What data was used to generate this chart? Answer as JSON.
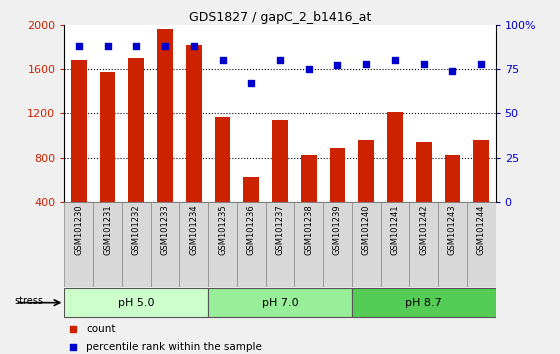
{
  "title": "GDS1827 / gapC_2_b1416_at",
  "categories": [
    "GSM101230",
    "GSM101231",
    "GSM101232",
    "GSM101233",
    "GSM101234",
    "GSM101235",
    "GSM101236",
    "GSM101237",
    "GSM101238",
    "GSM101239",
    "GSM101240",
    "GSM101241",
    "GSM101242",
    "GSM101243",
    "GSM101244"
  ],
  "counts": [
    1680,
    1570,
    1700,
    1960,
    1820,
    1170,
    620,
    1140,
    820,
    890,
    960,
    1210,
    940,
    820,
    960
  ],
  "percentile": [
    88,
    88,
    88,
    88,
    88,
    80,
    67,
    80,
    75,
    77,
    78,
    80,
    78,
    74,
    78
  ],
  "bar_color": "#cc2200",
  "dot_color": "#0000cc",
  "ylim_left": [
    400,
    2000
  ],
  "ylim_right": [
    0,
    100
  ],
  "yticks_left": [
    400,
    800,
    1200,
    1600,
    2000
  ],
  "yticks_right": [
    0,
    25,
    50,
    75,
    100
  ],
  "yticklabels_right": [
    "0",
    "25",
    "50",
    "75",
    "100%"
  ],
  "grid_vals": [
    800,
    1200,
    1600
  ],
  "groups": [
    {
      "label": "pH 5.0",
      "start": 0,
      "end": 5,
      "color": "#ccffcc"
    },
    {
      "label": "pH 7.0",
      "start": 5,
      "end": 10,
      "color": "#99ee99"
    },
    {
      "label": "pH 8.7",
      "start": 10,
      "end": 15,
      "color": "#55cc55"
    }
  ],
  "stress_label": "stress",
  "legend_count_label": "count",
  "legend_pct_label": "percentile rank within the sample",
  "bg_color": "#f0f0f0",
  "plot_bg": "#ffffff",
  "left_axis_color": "#cc2200",
  "right_axis_color": "#0000cc",
  "spine_color": "#000000",
  "xtick_bg": "#d8d8d8",
  "xtick_border": "#888888"
}
